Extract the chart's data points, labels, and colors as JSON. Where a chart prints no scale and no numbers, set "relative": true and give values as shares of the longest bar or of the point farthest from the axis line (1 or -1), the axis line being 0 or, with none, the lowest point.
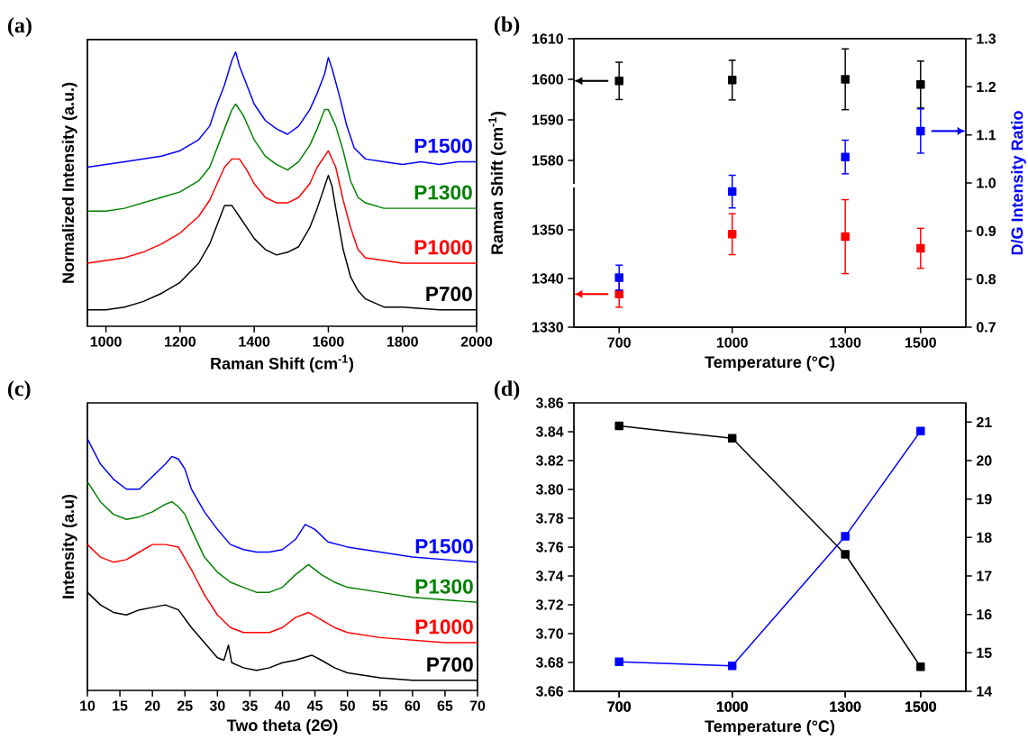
{
  "chart_data": [
    {
      "type": "line",
      "title": "(a)",
      "xlabel": "Raman Shift (cm$^{-1}$)",
      "ylabel": "Normalized Intensity (a.u.)",
      "relative": true,
      "xlim": [
        950,
        2000
      ],
      "xticks": [
        1000,
        1200,
        1400,
        1600,
        1800,
        2000
      ],
      "series": [
        {
          "name": "P700",
          "color": "#000000",
          "x": [
            950,
            1000,
            1050,
            1100,
            1150,
            1200,
            1250,
            1280,
            1300,
            1320,
            1340,
            1360,
            1380,
            1400,
            1430,
            1460,
            1490,
            1520,
            1550,
            1570,
            1590,
            1600,
            1610,
            1620,
            1640,
            1660,
            1680,
            1700,
            1750,
            1800,
            1900,
            2000
          ],
          "values": [
            0.06,
            0.06,
            0.07,
            0.09,
            0.12,
            0.16,
            0.23,
            0.3,
            0.37,
            0.44,
            0.44,
            0.4,
            0.36,
            0.32,
            0.28,
            0.26,
            0.27,
            0.29,
            0.36,
            0.43,
            0.51,
            0.55,
            0.51,
            0.43,
            0.28,
            0.18,
            0.13,
            0.1,
            0.07,
            0.07,
            0.06,
            0.06
          ]
        },
        {
          "name": "P1000",
          "color": "#ff0000",
          "x": [
            950,
            1000,
            1050,
            1100,
            1150,
            1200,
            1250,
            1280,
            1300,
            1320,
            1340,
            1360,
            1380,
            1400,
            1430,
            1460,
            1490,
            1520,
            1550,
            1570,
            1590,
            1600,
            1620,
            1640,
            1660,
            1680,
            1700,
            1750,
            1800,
            1900,
            2000
          ],
          "values": [
            0.23,
            0.24,
            0.25,
            0.27,
            0.3,
            0.34,
            0.4,
            0.46,
            0.52,
            0.58,
            0.61,
            0.61,
            0.57,
            0.52,
            0.47,
            0.45,
            0.45,
            0.47,
            0.52,
            0.58,
            0.62,
            0.64,
            0.58,
            0.46,
            0.36,
            0.28,
            0.25,
            0.24,
            0.23,
            0.23,
            0.23
          ]
        },
        {
          "name": "P1300",
          "color": "#008000",
          "x": [
            950,
            1000,
            1050,
            1100,
            1150,
            1200,
            1250,
            1280,
            1300,
            1320,
            1340,
            1350,
            1370,
            1400,
            1430,
            1460,
            1490,
            1520,
            1550,
            1570,
            1590,
            1600,
            1620,
            1640,
            1660,
            1680,
            1700,
            1750,
            1800,
            1900,
            2000
          ],
          "values": [
            0.42,
            0.42,
            0.43,
            0.45,
            0.47,
            0.49,
            0.53,
            0.58,
            0.65,
            0.72,
            0.79,
            0.81,
            0.77,
            0.68,
            0.62,
            0.59,
            0.57,
            0.6,
            0.66,
            0.72,
            0.79,
            0.79,
            0.73,
            0.64,
            0.53,
            0.47,
            0.45,
            0.43,
            0.43,
            0.43,
            0.43
          ]
        },
        {
          "name": "P1500",
          "color": "#0000ff",
          "x": [
            950,
            1000,
            1050,
            1100,
            1150,
            1200,
            1250,
            1280,
            1300,
            1320,
            1340,
            1350,
            1360,
            1380,
            1400,
            1430,
            1460,
            1490,
            1520,
            1550,
            1570,
            1590,
            1600,
            1610,
            1630,
            1650,
            1670,
            1700,
            1750,
            1800,
            1850,
            1900,
            1950,
            2000
          ],
          "values": [
            0.58,
            0.59,
            0.6,
            0.61,
            0.62,
            0.64,
            0.68,
            0.73,
            0.81,
            0.88,
            0.97,
            1.0,
            0.95,
            0.88,
            0.81,
            0.75,
            0.72,
            0.7,
            0.73,
            0.79,
            0.85,
            0.92,
            0.98,
            0.94,
            0.84,
            0.73,
            0.65,
            0.61,
            0.6,
            0.59,
            0.6,
            0.59,
            0.6,
            0.6
          ]
        }
      ]
    },
    {
      "type": "scatter",
      "title": "(b)",
      "ylabel": "Raman Shift (cm$^{-1}$)",
      "xlim": [
        580,
        1620
      ],
      "xticks": [
        700,
        1000,
        1300,
        1500
      ],
      "ylim": [
        1574.2,
        1610
      ],
      "yticks": [
        1580,
        1590,
        1600,
        1610
      ],
      "tick_labels": "y",
      "marker": "square",
      "x": [
        700,
        1000,
        1300,
        1500
      ],
      "series": [
        {
          "color": "#000000",
          "values": [
            1599.6,
            1599.8,
            1600.0,
            1598.7
          ],
          "errors": [
            4.6,
            4.9,
            7.5,
            5.8
          ]
        }
      ]
    },
    {
      "type": "scatter",
      "xlabel": "Temperature (°C)",
      "xlim": [
        580,
        1620
      ],
      "xticks": [
        700,
        1000,
        1300,
        1500
      ],
      "ylim": [
        1330,
        1358.7
      ],
      "yticks": [
        1330,
        1340,
        1350
      ],
      "marker": "square",
      "x": [
        700,
        1000,
        1300,
        1500
      ],
      "series": [
        {
          "color": "#ff0000",
          "values": [
            1336.8,
            1349.1,
            1348.6,
            1346.2
          ],
          "errors": [
            2.7,
            4.2,
            7.6,
            4.1
          ]
        }
      ]
    },
    {
      "type": "scatter",
      "y2label": "D/G Intensity Ratio",
      "xlim": [
        580,
        1620
      ],
      "xticks": [
        700,
        1000,
        1300,
        1500
      ],
      "tick_labels": "y",
      "y2lim": [
        0.7,
        1.3
      ],
      "y2ticks": [
        0.7,
        0.8,
        0.9,
        {
          "value": 1,
          "label": "1.0"
        },
        1.1,
        1.2,
        1.3
      ],
      "marker": "square",
      "x": [
        700,
        1000,
        1300,
        1500
      ],
      "series": [
        {
          "color": "#0000ff",
          "axis": "y2",
          "values": [
            0.803,
            0.982,
            1.054,
            1.108
          ],
          "errors": [
            0.026,
            0.034,
            0.035,
            0.046
          ]
        }
      ]
    },
    {
      "type": "line",
      "title": "(c)",
      "xlabel": "Two theta (2Θ)",
      "ylabel": "Intensity (a.u)",
      "relative": true,
      "xlim": [
        10,
        70
      ],
      "xticks": [
        10,
        15,
        20,
        25,
        30,
        35,
        40,
        45,
        50,
        55,
        60,
        65,
        70
      ],
      "series": [
        {
          "name": "P700",
          "color": "#000000",
          "x": [
            10,
            12,
            14,
            16,
            18,
            20,
            22,
            24,
            26,
            28,
            30,
            31,
            31.7,
            32.2,
            34,
            36,
            38,
            40,
            42,
            44.5,
            46,
            48,
            50,
            55,
            60,
            65,
            70
          ],
          "values": [
            0.39,
            0.34,
            0.31,
            0.3,
            0.32,
            0.33,
            0.34,
            0.32,
            0.25,
            0.19,
            0.13,
            0.12,
            0.18,
            0.11,
            0.09,
            0.08,
            0.09,
            0.11,
            0.12,
            0.14,
            0.12,
            0.09,
            0.07,
            0.05,
            0.04,
            0.04,
            0.04
          ]
        },
        {
          "name": "P1000",
          "color": "#ff0000",
          "x": [
            10,
            12,
            14,
            16,
            18,
            20,
            22,
            24,
            26,
            28,
            30,
            32,
            34,
            36,
            38,
            40,
            42,
            44,
            46,
            48,
            50,
            55,
            60,
            65,
            70
          ],
          "values": [
            0.58,
            0.53,
            0.51,
            0.52,
            0.55,
            0.58,
            0.58,
            0.57,
            0.48,
            0.38,
            0.3,
            0.25,
            0.23,
            0.23,
            0.23,
            0.25,
            0.29,
            0.31,
            0.28,
            0.25,
            0.23,
            0.21,
            0.2,
            0.19,
            0.19
          ]
        },
        {
          "name": "P1300",
          "color": "#008000",
          "x": [
            10,
            12,
            14,
            16,
            18,
            20,
            22,
            23,
            24,
            25,
            26,
            28,
            30,
            32,
            34,
            36,
            38,
            40,
            42,
            44,
            46,
            48,
            50,
            55,
            60,
            65,
            70
          ],
          "values": [
            0.83,
            0.75,
            0.7,
            0.68,
            0.69,
            0.71,
            0.74,
            0.75,
            0.73,
            0.7,
            0.64,
            0.53,
            0.47,
            0.43,
            0.41,
            0.39,
            0.39,
            0.41,
            0.46,
            0.5,
            0.46,
            0.43,
            0.41,
            0.39,
            0.37,
            0.36,
            0.35
          ]
        },
        {
          "name": "P1500",
          "color": "#0000ff",
          "x": [
            10,
            12,
            14,
            16,
            18,
            20,
            22,
            23,
            24,
            25,
            26,
            28,
            30,
            32,
            34,
            36,
            38,
            40,
            42,
            43.5,
            45,
            47,
            50,
            55,
            60,
            65,
            70
          ],
          "values": [
            1.0,
            0.9,
            0.84,
            0.8,
            0.8,
            0.85,
            0.9,
            0.93,
            0.92,
            0.88,
            0.8,
            0.71,
            0.64,
            0.58,
            0.56,
            0.55,
            0.55,
            0.56,
            0.6,
            0.66,
            0.64,
            0.59,
            0.57,
            0.55,
            0.53,
            0.52,
            0.51
          ]
        }
      ]
    },
    {
      "type": "line",
      "title": "(d)",
      "xlabel": "Temperature (°C)",
      "xlim": [
        580,
        1620
      ],
      "xticks": [
        700,
        1000,
        1300,
        1500
      ],
      "ylim": [
        3.66,
        3.86
      ],
      "yticks": [
        3.66,
        {
          "value": 3.68,
          "label": "3.68"
        },
        {
          "value": 3.7,
          "label": "3.70"
        },
        3.72,
        3.74,
        3.76,
        3.78,
        {
          "value": 3.8,
          "label": "3.80"
        },
        3.82,
        3.84,
        3.86
      ],
      "y2lim": [
        14,
        21.5
      ],
      "y2ticks": [
        14,
        15,
        16,
        17,
        18,
        19,
        20,
        21
      ],
      "marker": "square",
      "x": [
        700,
        1000,
        1300,
        1500
      ],
      "series": [
        {
          "color": "#000000",
          "values": [
            3.844,
            3.8355,
            3.755,
            3.677
          ]
        },
        {
          "color": "#0000ff",
          "axis": "y2",
          "values": [
            14.77,
            14.66,
            18.03,
            20.77
          ]
        }
      ]
    }
  ]
}
